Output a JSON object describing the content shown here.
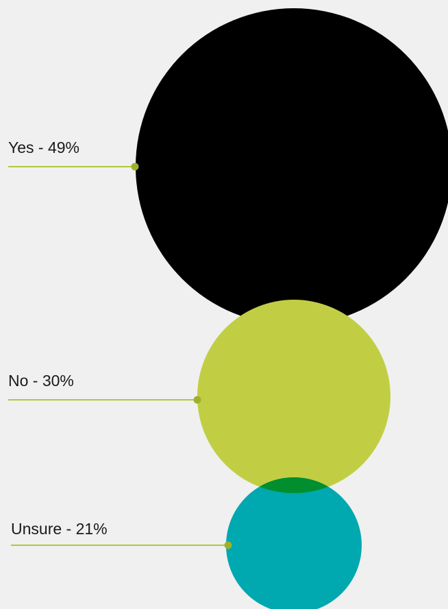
{
  "chart_data": {
    "type": "bubble",
    "title": "",
    "categories": [
      "Yes",
      "No",
      "Unsure"
    ],
    "values": [
      49,
      30,
      21
    ],
    "unit": "%",
    "labels": [
      "Yes - 49%",
      "No - 30%",
      "Unsure - 21%"
    ],
    "legend": "none",
    "grid": false
  },
  "colors": {
    "background": "#f0f0f0",
    "yes": "#000000",
    "no": "#c1ce44",
    "unsure": "#00a8b0",
    "overlap": "#008e2e",
    "leader_line": "#b5c53c",
    "leader_dot": "#9fb02c"
  }
}
